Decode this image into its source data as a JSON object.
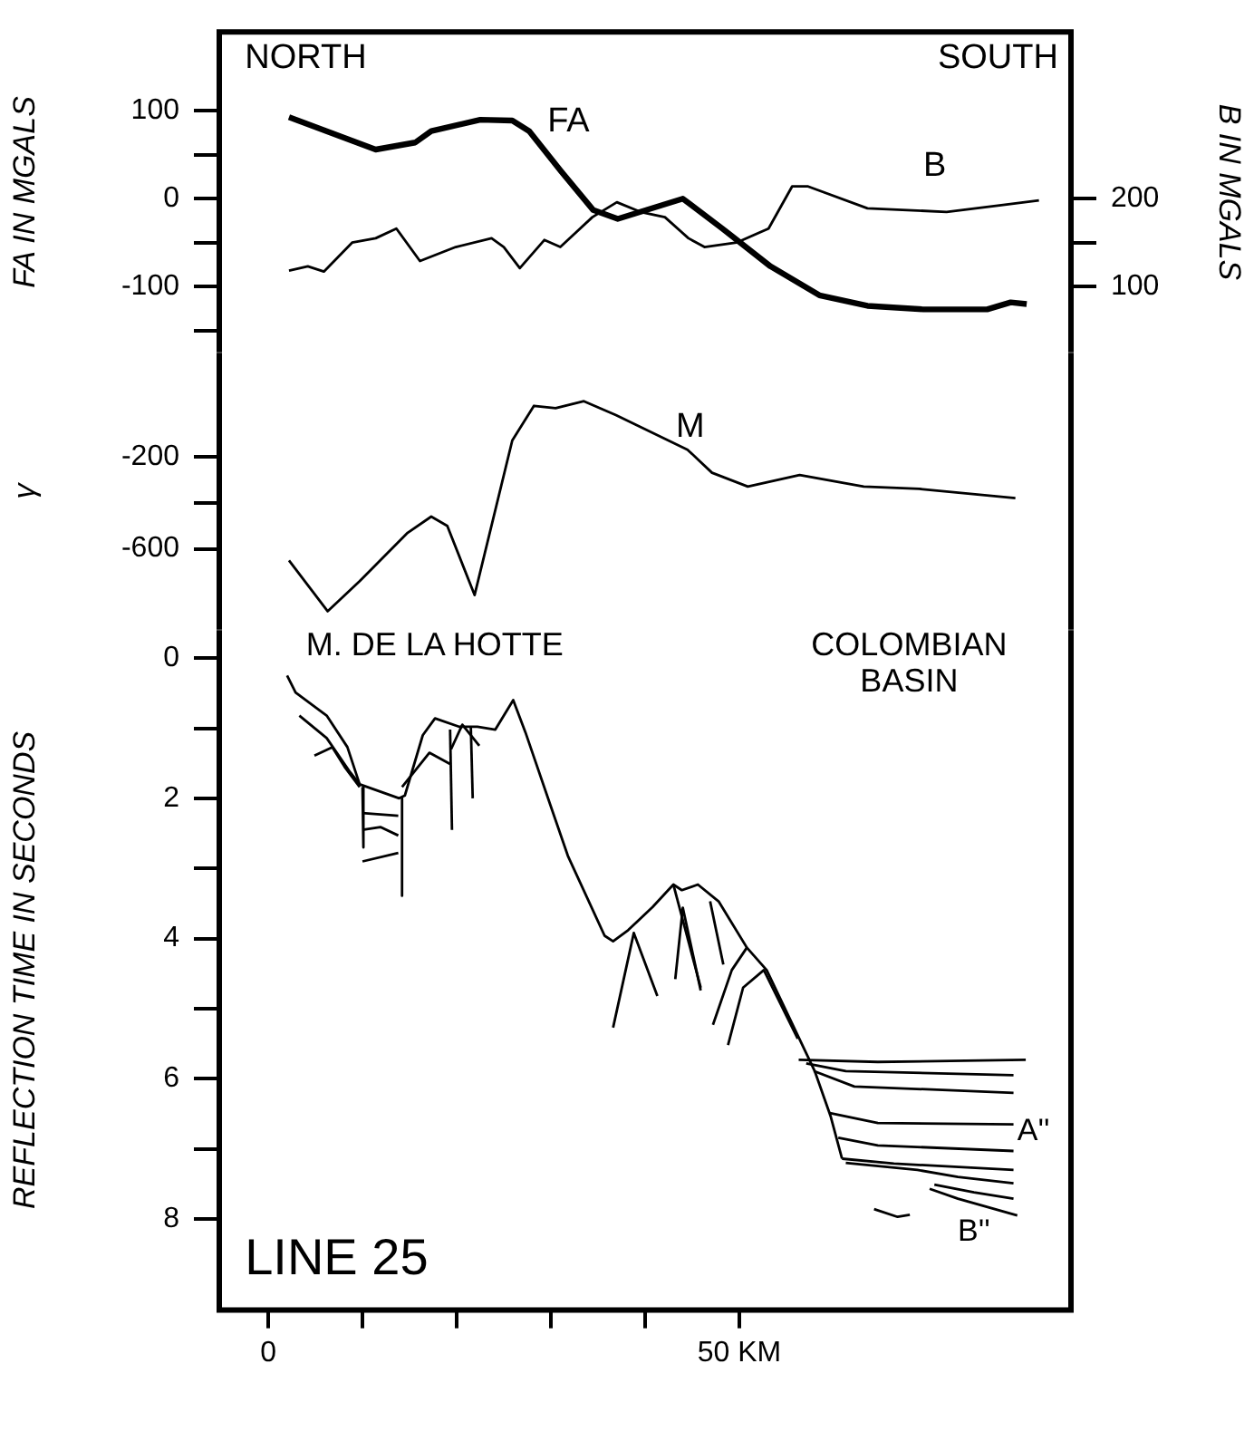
{
  "chart_data": [
    {
      "type": "line",
      "ylabel": "FA IN MGALS",
      "y2label": "B IN MGALS",
      "tick_labels": "y",
      "xlim": [
        -5.2,
        85.2
      ],
      "ylim": [
        -175,
        190
      ],
      "yticks": [
        100,
        {
          "value": 50,
          "label": null
        },
        0,
        {
          "value": -50,
          "label": null
        },
        -100,
        {
          "value": -150,
          "label": null
        }
      ],
      "y2lim": [
        25,
        390
      ],
      "y2ticks": [
        200,
        {
          "value": 150,
          "label": null
        },
        100
      ],
      "annotations": [
        "NORTH",
        "SOUTH",
        "FA",
        "B"
      ],
      "series": [
        {
          "type": "line",
          "color": "#000000",
          "axis": "y",
          "x": [
            2.2,
            11.4,
            15.6,
            17.3,
            22.5,
            25.9,
            27.7,
            31.1,
            34.5,
            37.1,
            44,
            48.2,
            53.3,
            58.5,
            63.6,
            69.5,
            76.3,
            78.8,
            80.5
          ],
          "values": [
            93,
            56,
            64,
            77,
            90,
            89,
            77,
            31,
            -13,
            -23,
            0,
            -34,
            -77,
            -110,
            -122,
            -126,
            -126,
            -118,
            -120
          ]
        },
        {
          "type": "line",
          "color": "#000000",
          "axis": "y2",
          "x": [
            2.2,
            4.2,
            5.9,
            8.9,
            11.4,
            13.6,
            16.1,
            19.9,
            23.7,
            25,
            26.7,
            29.3,
            31,
            34.4,
            37,
            39.5,
            42.1,
            44.6,
            46.3,
            49.7,
            53.1,
            55.6,
            57.3,
            63.6,
            72,
            78,
            81.8
          ],
          "values": [
            118,
            123,
            117,
            150,
            155,
            166,
            129,
            145,
            155,
            145,
            121,
            153,
            145,
            179,
            196,
            185,
            179,
            155,
            145,
            150,
            166,
            214,
            214,
            189,
            185,
            193,
            198
          ]
        }
      ]
    },
    {
      "type": "line",
      "ylabel": "γ",
      "tick_labels": "y",
      "xlim": [
        -5.2,
        85.2
      ],
      "ylim": [
        -950,
        250
      ],
      "yticks": [
        -200,
        {
          "value": -400,
          "label": null
        },
        -600
      ],
      "annotations": [
        "M"
      ],
      "series": [
        {
          "type": "line",
          "color": "#000000",
          "x": [
            2.2,
            6.3,
            9.7,
            14.8,
            17.3,
            19,
            21.9,
            25.9,
            28.2,
            30.5,
            33.5,
            36.9,
            44.5,
            47.1,
            50.9,
            56.4,
            63.2,
            69.1,
            79.3
          ],
          "values": [
            -650,
            -870,
            -740,
            -530,
            -460,
            -500,
            -800,
            -130,
            20,
            10,
            40,
            -20,
            -170,
            -270,
            -330,
            -280,
            -330,
            -340,
            -380
          ]
        }
      ]
    },
    {
      "type": "line",
      "ylabel": "REFLECTION TIME IN SECONDS",
      "xlim": [
        -5.2,
        85.2
      ],
      "xticks": [
        0,
        {
          "value": 10,
          "label": null
        },
        {
          "value": 20,
          "label": null
        },
        {
          "value": 30,
          "label": null
        },
        {
          "value": 40,
          "label": null
        },
        {
          "value": 50,
          "label": "50 KM"
        }
      ],
      "ylim": [
        9.3,
        -0.4
      ],
      "yticks": [
        0,
        {
          "value": 1,
          "label": null
        },
        2,
        {
          "value": 3,
          "label": null
        },
        4,
        {
          "value": 5,
          "label": null
        },
        6,
        {
          "value": 7,
          "label": null
        },
        8
      ],
      "annotations": [
        "M. DE LA HOTTE",
        "COLOMBIAN BASIN",
        "A''",
        "B''",
        "LINE 25"
      ],
      "series": [
        {
          "type": "line",
          "color": "#000000",
          "x": [
            2.0,
            2.9,
            6.2,
            8.4,
            9.7,
            13.9,
            14.5,
            16.4,
            17.7,
            20.3,
            22.2,
            24.1,
            26.0,
            27.3,
            29.9,
            31.8,
            35.7,
            36.6,
            38.2,
            40.8,
            43.0,
            43.9,
            45.6,
            47.8,
            50.8,
            52.9,
            56.3,
            58.0,
            59.7,
            60.9
          ],
          "values": [
            0.25,
            0.49,
            0.82,
            1.27,
            1.8,
            2.0,
            1.96,
            1.1,
            0.86,
            0.98,
            0.98,
            1.02,
            0.6,
            1.06,
            2.08,
            2.82,
            3.96,
            4.04,
            3.88,
            3.55,
            3.23,
            3.31,
            3.23,
            3.47,
            4.13,
            4.45,
            5.41,
            5.89,
            6.54,
            7.14
          ]
        },
        {
          "type": "line",
          "color": "#000000",
          "x": [
            3.3,
            6.2,
            8.7,
            9.7
          ],
          "values": [
            0.82,
            1.14,
            1.63,
            1.8
          ]
        },
        {
          "type": "line",
          "color": "#000000",
          "x": [
            4.9,
            6.8,
            8.1,
            9.7
          ],
          "values": [
            1.39,
            1.27,
            1.55,
            1.84
          ]
        },
        {
          "type": "line",
          "color": "#000000",
          "x": [
            10,
            10.1
          ],
          "values": [
            1.84,
            2.7
          ]
        },
        {
          "type": "line",
          "color": "#000000",
          "x": [
            14.2,
            14.2
          ],
          "values": [
            2.0,
            3.39
          ]
        },
        {
          "type": "line",
          "color": "#000000",
          "x": [
            19.3,
            19.5
          ],
          "values": [
            1.02,
            2.45
          ]
        },
        {
          "type": "line",
          "color": "#000000",
          "x": [
            21.5,
            21.7
          ],
          "values": [
            0.98,
            2.0
          ]
        },
        {
          "type": "line",
          "color": "#000000",
          "x": [
            10,
            13.8
          ],
          "values": [
            2.21,
            2.25
          ]
        },
        {
          "type": "line",
          "color": "#000000",
          "x": [
            10,
            11.9,
            13.8
          ],
          "values": [
            2.45,
            2.41,
            2.53
          ]
        },
        {
          "type": "line",
          "color": "#000000",
          "x": [
            10,
            13.8
          ],
          "values": [
            2.9,
            2.78
          ]
        },
        {
          "type": "line",
          "color": "#000000",
          "x": [
            14.2,
            17.1,
            19.3
          ],
          "values": [
            1.84,
            1.35,
            1.51
          ]
        },
        {
          "type": "line",
          "color": "#000000",
          "x": [
            19.4,
            20.6,
            22.4
          ],
          "values": [
            1.3,
            0.95,
            1.25
          ]
        },
        {
          "type": "line",
          "color": "#000000",
          "x": [
            36.6,
            38.8,
            41.3
          ],
          "values": [
            5.27,
            3.92,
            4.82
          ]
        },
        {
          "type": "line",
          "color": "#000000",
          "x": [
            43.2,
            44,
            45.9
          ],
          "values": [
            4.58,
            3.56,
            4.74
          ]
        },
        {
          "type": "line",
          "color": "#000000",
          "x": [
            43,
            45.9
          ],
          "values": [
            3.23,
            4.7
          ]
        },
        {
          "type": "line",
          "color": "#000000",
          "x": [
            46.9,
            48.3
          ],
          "values": [
            3.47,
            4.37
          ]
        },
        {
          "type": "line",
          "color": "#000000",
          "x": [
            47.2,
            49.2,
            50.8
          ],
          "values": [
            5.23,
            4.45,
            4.13
          ]
        },
        {
          "type": "line",
          "color": "#000000",
          "x": [
            48.8,
            50.4,
            52.6,
            56.2
          ],
          "values": [
            5.52,
            4.7,
            4.45,
            5.43
          ]
        },
        {
          "type": "line",
          "color": "#000000",
          "x": [
            56.3,
            64.7,
            80.4
          ],
          "values": [
            5.73,
            5.76,
            5.73
          ]
        },
        {
          "type": "line",
          "color": "#000000",
          "x": [
            57.1,
            61.3,
            79.1
          ],
          "values": [
            5.78,
            5.89,
            5.95
          ]
        },
        {
          "type": "line",
          "color": "#000000",
          "x": [
            57.9,
            62.2,
            79.1
          ],
          "values": [
            5.89,
            6.11,
            6.2
          ]
        },
        {
          "type": "line",
          "color": "#000000",
          "x": [
            59.6,
            64.7,
            79.1
          ],
          "values": [
            6.49,
            6.63,
            6.65
          ]
        },
        {
          "type": "line",
          "color": "#000000",
          "x": [
            60.5,
            64.7,
            79.1
          ],
          "values": [
            6.84,
            6.95,
            7.03
          ]
        },
        {
          "type": "line",
          "color": "#000000",
          "x": [
            60.9,
            66.4,
            79.1
          ],
          "values": [
            7.14,
            7.21,
            7.3
          ]
        },
        {
          "type": "line",
          "color": "#000000",
          "x": [
            61.3,
            68.9,
            73.2,
            79.1
          ],
          "values": [
            7.2,
            7.3,
            7.4,
            7.49
          ]
        },
        {
          "type": "line",
          "color": "#000000",
          "x": [
            70.7,
            74.9,
            79.1
          ],
          "values": [
            7.51,
            7.62,
            7.71
          ]
        },
        {
          "type": "line",
          "color": "#000000",
          "x": [
            70.2,
            73.2,
            79.5
          ],
          "values": [
            7.57,
            7.71,
            7.95
          ]
        },
        {
          "type": "line",
          "color": "#000000",
          "x": [
            64.3,
            66.8,
            68.1
          ],
          "values": [
            7.86,
            7.97,
            7.94
          ]
        }
      ]
    }
  ]
}
